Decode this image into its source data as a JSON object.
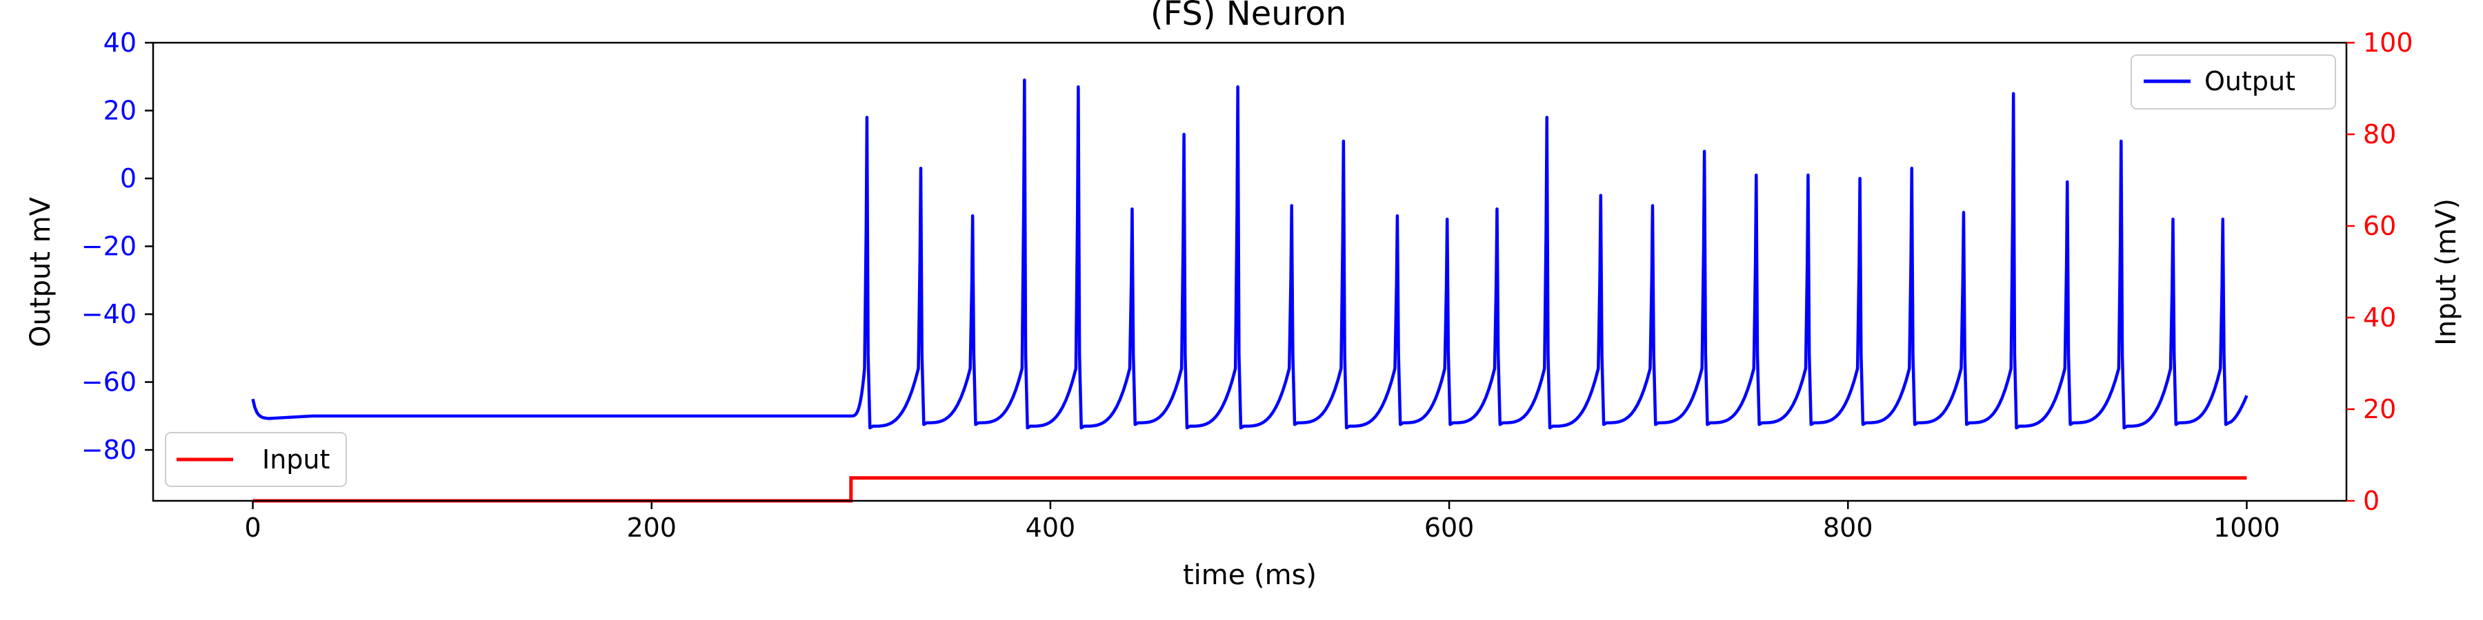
{
  "chart_data": {
    "type": "line",
    "title": "(FS) Neuron",
    "xlabel": "time (ms)",
    "xlim": [
      -50,
      1050
    ],
    "xticks": [
      0,
      200,
      400,
      600,
      800,
      1000
    ],
    "left_axis": {
      "label": "Output mV",
      "color": "#0000ff",
      "ylim": [
        -95,
        40
      ],
      "ticks": [
        40,
        20,
        0,
        -20,
        -40,
        -60,
        -80
      ]
    },
    "right_axis": {
      "label": "Input (mV)",
      "color": "#ff0000",
      "ylim": [
        0,
        100
      ],
      "ticks": [
        0,
        20,
        40,
        60,
        80,
        100
      ]
    },
    "series": [
      {
        "name": "Output",
        "axis": "left",
        "color": "#0000ff",
        "baseline_mV": -70,
        "initial_mV": -65,
        "input_onset_ms": 300,
        "end_mV": -64,
        "spikes": [
          {
            "t": 308,
            "peak": 18
          },
          {
            "t": 335,
            "peak": 3
          },
          {
            "t": 361,
            "peak": -11
          },
          {
            "t": 387,
            "peak": 29
          },
          {
            "t": 414,
            "peak": 27
          },
          {
            "t": 441,
            "peak": -9
          },
          {
            "t": 467,
            "peak": 13
          },
          {
            "t": 494,
            "peak": 27
          },
          {
            "t": 521,
            "peak": -8
          },
          {
            "t": 547,
            "peak": 11
          },
          {
            "t": 574,
            "peak": -11
          },
          {
            "t": 599,
            "peak": -12
          },
          {
            "t": 624,
            "peak": -9
          },
          {
            "t": 649,
            "peak": 18
          },
          {
            "t": 676,
            "peak": -5
          },
          {
            "t": 702,
            "peak": -8
          },
          {
            "t": 728,
            "peak": 8
          },
          {
            "t": 754,
            "peak": 1
          },
          {
            "t": 780,
            "peak": 1
          },
          {
            "t": 806,
            "peak": 0
          },
          {
            "t": 832,
            "peak": 3
          },
          {
            "t": 858,
            "peak": -10
          },
          {
            "t": 883,
            "peak": 25
          },
          {
            "t": 910,
            "peak": -1
          },
          {
            "t": 937,
            "peak": 11
          },
          {
            "t": 963,
            "peak": -12
          },
          {
            "t": 988,
            "peak": -12
          }
        ]
      },
      {
        "name": "Input",
        "axis": "right",
        "color": "#ff0000",
        "x": [
          0,
          300,
          300,
          1000
        ],
        "values": [
          0,
          0,
          5,
          5
        ]
      }
    ],
    "legend": [
      {
        "name": "Output",
        "location": "upper-right"
      },
      {
        "name": "Input",
        "location": "lower-left"
      }
    ]
  }
}
